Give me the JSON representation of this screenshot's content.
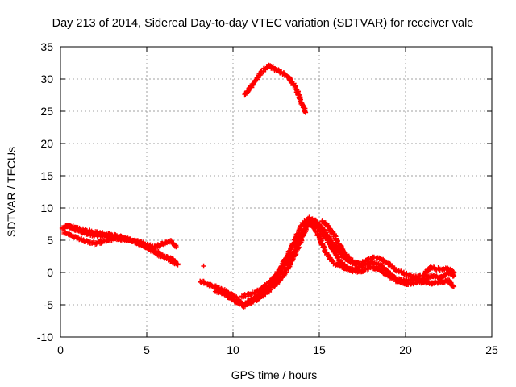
{
  "chart_data": {
    "type": "scatter",
    "title": "Day 213 of 2014, Sidereal Day-to-day VTEC variation (SDTVAR) for receiver vale",
    "xlabel": "GPS time / hours",
    "ylabel": "SDTVAR / TECUs",
    "xlim": [
      0,
      25
    ],
    "ylim": [
      -10,
      35
    ],
    "xticks": [
      0,
      5,
      10,
      15,
      20,
      25
    ],
    "xtick_labels": [
      "0",
      "5",
      "10",
      "15",
      "20",
      "25"
    ],
    "yticks": [
      -10,
      -5,
      0,
      5,
      10,
      15,
      20,
      25,
      30,
      35
    ],
    "ytick_labels": [
      "-10",
      "-5",
      "0",
      "5",
      "10",
      "15",
      "20",
      "25",
      "30",
      "35"
    ],
    "grid": true,
    "marker": "plus",
    "color": "#ff0000",
    "series": [
      {
        "name": "track-a",
        "points": [
          [
            0.1,
            6.8
          ],
          [
            0.4,
            7.2
          ],
          [
            0.8,
            6.8
          ],
          [
            1.2,
            6.3
          ],
          [
            1.6,
            6.0
          ],
          [
            2.0,
            5.8
          ],
          [
            2.5,
            5.6
          ],
          [
            3.0,
            5.5
          ],
          [
            3.5,
            5.2
          ],
          [
            4.0,
            5.0
          ],
          [
            4.5,
            4.8
          ],
          [
            5.0,
            4.3
          ],
          [
            5.5,
            4.0
          ],
          [
            6.0,
            4.5
          ],
          [
            6.4,
            4.8
          ],
          [
            6.7,
            4.0
          ]
        ]
      },
      {
        "name": "track-b",
        "points": [
          [
            0.2,
            6.2
          ],
          [
            0.6,
            5.8
          ],
          [
            1.0,
            5.3
          ],
          [
            1.5,
            4.8
          ],
          [
            2.0,
            4.5
          ],
          [
            2.5,
            4.8
          ],
          [
            3.0,
            5.2
          ],
          [
            3.5,
            5.4
          ],
          [
            4.0,
            5.0
          ],
          [
            4.5,
            4.6
          ],
          [
            5.0,
            4.0
          ],
          [
            5.5,
            3.3
          ],
          [
            6.0,
            2.6
          ],
          [
            6.5,
            2.0
          ],
          [
            6.7,
            1.5
          ]
        ]
      },
      {
        "name": "track-c",
        "points": [
          [
            0.3,
            7.3
          ],
          [
            0.8,
            7.0
          ],
          [
            1.3,
            6.6
          ],
          [
            1.8,
            6.3
          ],
          [
            2.3,
            6.1
          ],
          [
            2.8,
            5.9
          ],
          [
            3.3,
            5.6
          ],
          [
            3.8,
            5.3
          ],
          [
            4.3,
            4.8
          ],
          [
            4.8,
            4.1
          ],
          [
            5.3,
            3.4
          ],
          [
            5.8,
            2.6
          ],
          [
            6.3,
            1.9
          ],
          [
            6.8,
            1.2
          ]
        ]
      },
      {
        "name": "isolated-point",
        "points": [
          [
            8.3,
            1.0
          ]
        ]
      },
      {
        "name": "track-d",
        "points": [
          [
            8.1,
            -1.3
          ],
          [
            8.5,
            -1.8
          ],
          [
            9.0,
            -2.2
          ],
          [
            9.5,
            -2.8
          ],
          [
            10.0,
            -3.6
          ],
          [
            10.5,
            -4.7
          ],
          [
            10.6,
            -5.3
          ],
          [
            11.0,
            -4.3
          ],
          [
            11.5,
            -3.6
          ],
          [
            12.0,
            -2.6
          ],
          [
            12.5,
            -1.0
          ],
          [
            13.0,
            1.0
          ],
          [
            13.5,
            3.0
          ],
          [
            14.0,
            6.0
          ],
          [
            14.3,
            7.8
          ],
          [
            14.6,
            7.5
          ],
          [
            15.0,
            5.5
          ],
          [
            15.4,
            3.0
          ],
          [
            15.8,
            1.5
          ],
          [
            16.2,
            1.0
          ],
          [
            16.6,
            0.6
          ],
          [
            17.0,
            0.5
          ],
          [
            17.5,
            1.0
          ],
          [
            18.0,
            1.5
          ],
          [
            18.5,
            1.2
          ],
          [
            19.0,
            0.0
          ],
          [
            19.5,
            -1.0
          ],
          [
            20.0,
            -1.3
          ],
          [
            20.5,
            -1.0
          ],
          [
            21.0,
            -1.2
          ],
          [
            21.5,
            -0.5
          ],
          [
            22.0,
            -0.8
          ],
          [
            22.5,
            0.0
          ],
          [
            22.8,
            -0.5
          ]
        ]
      },
      {
        "name": "track-e",
        "points": [
          [
            9.0,
            -2.8
          ],
          [
            9.5,
            -3.3
          ],
          [
            10.0,
            -4.2
          ],
          [
            10.5,
            -5.0
          ],
          [
            11.0,
            -4.7
          ],
          [
            11.5,
            -4.0
          ],
          [
            12.0,
            -3.0
          ],
          [
            12.5,
            -1.8
          ],
          [
            13.0,
            -0.2
          ],
          [
            13.5,
            2.2
          ],
          [
            14.0,
            5.5
          ],
          [
            14.3,
            7.2
          ],
          [
            14.7,
            7.8
          ],
          [
            15.0,
            6.8
          ],
          [
            15.4,
            5.2
          ],
          [
            15.8,
            3.5
          ],
          [
            16.2,
            1.8
          ],
          [
            16.6,
            0.8
          ],
          [
            17.0,
            0.2
          ],
          [
            17.5,
            0.3
          ],
          [
            18.0,
            0.8
          ],
          [
            18.5,
            0.5
          ],
          [
            19.0,
            -0.5
          ],
          [
            19.5,
            -1.3
          ],
          [
            20.0,
            -1.8
          ],
          [
            20.5,
            -1.6
          ],
          [
            21.0,
            -1.5
          ],
          [
            21.5,
            -1.7
          ],
          [
            22.0,
            -1.5
          ],
          [
            22.5,
            -1.2
          ],
          [
            22.8,
            -2.2
          ]
        ]
      },
      {
        "name": "track-f",
        "points": [
          [
            10.5,
            -3.8
          ],
          [
            11.0,
            -3.3
          ],
          [
            11.5,
            -2.8
          ],
          [
            12.0,
            -1.8
          ],
          [
            12.5,
            -0.5
          ],
          [
            13.0,
            1.8
          ],
          [
            13.5,
            4.5
          ],
          [
            14.0,
            7.5
          ],
          [
            14.4,
            8.4
          ],
          [
            14.8,
            8.0
          ],
          [
            15.2,
            6.8
          ],
          [
            15.6,
            5.3
          ],
          [
            16.0,
            3.6
          ],
          [
            16.4,
            2.4
          ],
          [
            16.8,
            1.6
          ],
          [
            17.2,
            1.2
          ],
          [
            17.6,
            1.6
          ],
          [
            18.0,
            2.3
          ],
          [
            18.5,
            2.2
          ],
          [
            19.0,
            1.4
          ],
          [
            19.5,
            0.3
          ],
          [
            20.0,
            -0.2
          ],
          [
            20.5,
            -0.7
          ],
          [
            21.0,
            -0.5
          ],
          [
            21.5,
            0.8
          ],
          [
            22.0,
            0.5
          ],
          [
            22.5,
            0.6
          ],
          [
            22.8,
            0.0
          ]
        ]
      },
      {
        "name": "track-g",
        "points": [
          [
            15.2,
            8.0
          ],
          [
            15.5,
            7.2
          ],
          [
            15.8,
            6.0
          ],
          [
            16.1,
            4.6
          ],
          [
            16.4,
            3.3
          ],
          [
            16.7,
            2.2
          ],
          [
            17.0,
            1.6
          ],
          [
            17.3,
            1.4
          ]
        ]
      },
      {
        "name": "track-h",
        "points": [
          [
            10.7,
            27.5
          ],
          [
            11.0,
            28.6
          ],
          [
            11.4,
            30.2
          ],
          [
            11.8,
            31.5
          ],
          [
            12.1,
            32.0
          ],
          [
            12.4,
            31.6
          ],
          [
            12.8,
            31.0
          ],
          [
            13.2,
            30.3
          ],
          [
            13.6,
            28.8
          ],
          [
            14.0,
            26.2
          ],
          [
            14.2,
            24.8
          ]
        ]
      }
    ]
  }
}
